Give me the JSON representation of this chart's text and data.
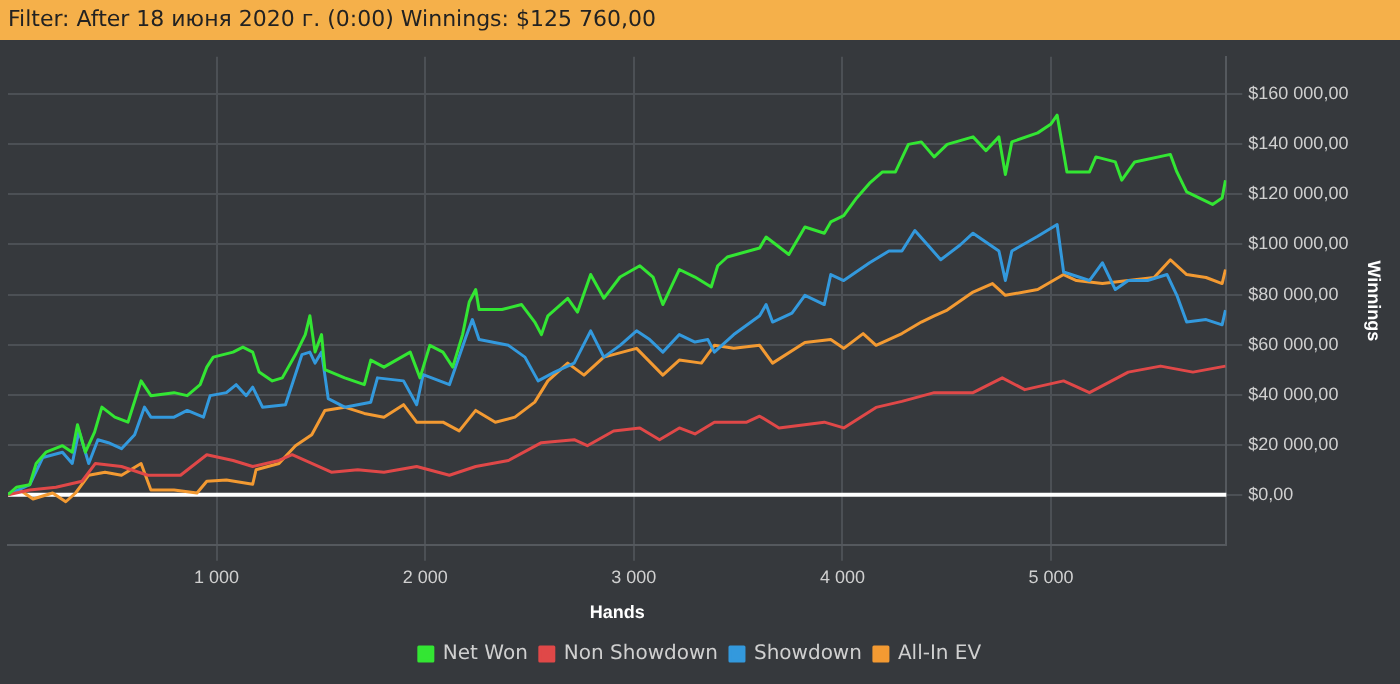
{
  "chart_data": {
    "type": "line",
    "title": "Filter: After 18 июня 2020 г. (0:00) Winnings: $125 760,00",
    "xlabel": "Hands",
    "ylabel": "Winnings",
    "xlim": [
      0,
      5840
    ],
    "ylim": [
      -20000,
      175000
    ],
    "xticks": [
      {
        "value": 1000,
        "label": "1 000"
      },
      {
        "value": 2000,
        "label": "2 000"
      },
      {
        "value": 3000,
        "label": "3 000"
      },
      {
        "value": 4000,
        "label": "4 000"
      },
      {
        "value": 5000,
        "label": "5 000"
      }
    ],
    "yticks": [
      {
        "value": 0,
        "label": "$0,00"
      },
      {
        "value": 20000,
        "label": "$20 000,00"
      },
      {
        "value": 40000,
        "label": "$40 000,00"
      },
      {
        "value": 60000,
        "label": "$60 000,00"
      },
      {
        "value": 80000,
        "label": "$80 000,00"
      },
      {
        "value": 100000,
        "label": "$100 000,00"
      },
      {
        "value": 120000,
        "label": "$120 000,00"
      },
      {
        "value": 140000,
        "label": "$140 000,00"
      },
      {
        "value": 160000,
        "label": "$160 000,00"
      }
    ],
    "grid": true,
    "legend": "bottom",
    "marker": "none",
    "line_style": "solid",
    "ref_lines": [
      {
        "axis": "y",
        "value": 0,
        "color": "#ffffff"
      }
    ],
    "series": [
      {
        "name": "Net Won",
        "color": "#33e633",
        "x": [
          0,
          40,
          104,
          135,
          182,
          261,
          308,
          333,
          371,
          415,
          450,
          512,
          575,
          638,
          685,
          796,
          859,
          921,
          953,
          984,
          1079,
          1126,
          1173,
          1204,
          1267,
          1315,
          1378,
          1425,
          1447,
          1472,
          1503,
          1519,
          1614,
          1708,
          1739,
          1802,
          1928,
          1975,
          2022,
          2085,
          2132,
          2179,
          2211,
          2242,
          2258,
          2368,
          2462,
          2525,
          2557,
          2588,
          2683,
          2730,
          2793,
          2856,
          2934,
          3029,
          3092,
          3139,
          3218,
          3293,
          3371,
          3402,
          3448,
          3603,
          3634,
          3743,
          3820,
          3913,
          3944,
          4006,
          4068,
          4130,
          4192,
          4254,
          4316,
          4378,
          4440,
          4502,
          4626,
          4688,
          4750,
          4781,
          4812,
          4936,
          4998,
          5029,
          5076,
          5184,
          5215,
          5308,
          5339,
          5401,
          5572,
          5603,
          5650,
          5774,
          5820,
          5836
        ],
        "values": [
          0,
          3000,
          4000,
          12500,
          17000,
          19600,
          17000,
          28000,
          17000,
          25000,
          35000,
          31000,
          29000,
          45500,
          39600,
          40800,
          39600,
          44000,
          51000,
          55000,
          57000,
          59000,
          57000,
          49000,
          45500,
          46700,
          56000,
          64000,
          71500,
          57000,
          64000,
          50000,
          46700,
          44000,
          53800,
          51000,
          57000,
          46700,
          59700,
          57000,
          51000,
          64000,
          77000,
          82000,
          74000,
          74000,
          76000,
          69000,
          64000,
          71500,
          78500,
          73000,
          88000,
          78500,
          87000,
          91500,
          87000,
          76000,
          90000,
          87000,
          83000,
          91500,
          95000,
          98600,
          103000,
          96000,
          107000,
          104500,
          109000,
          111500,
          118600,
          124500,
          129000,
          129000,
          140000,
          141000,
          135000,
          140000,
          143000,
          137500,
          143000,
          128000,
          141000,
          144600,
          148000,
          151700,
          129000,
          129000,
          135000,
          133000,
          125700,
          133000,
          136000,
          129000,
          121000,
          116000,
          118600,
          125700
        ]
      },
      {
        "name": "Non Showdown",
        "color": "#e04848",
        "x": [
          0,
          104,
          230,
          355,
          419,
          544,
          670,
          827,
          953,
          1079,
          1173,
          1299,
          1362,
          1456,
          1550,
          1676,
          1802,
          1959,
          2116,
          2242,
          2399,
          2557,
          2714,
          2777,
          2903,
          3029,
          3123,
          3218,
          3293,
          3386,
          3541,
          3603,
          3696,
          3913,
          4006,
          4161,
          4285,
          4440,
          4626,
          4766,
          4874,
          5060,
          5184,
          5370,
          5525,
          5680,
          5836
        ],
        "values": [
          0,
          1900,
          3000,
          5400,
          12500,
          11300,
          7800,
          7800,
          16000,
          13700,
          11300,
          13700,
          16000,
          12500,
          9000,
          10000,
          9000,
          11300,
          7800,
          11300,
          13700,
          20800,
          22000,
          19600,
          25500,
          26700,
          22000,
          26700,
          24300,
          29000,
          29000,
          31400,
          26700,
          29000,
          26700,
          34900,
          37300,
          40800,
          40800,
          46700,
          42000,
          45500,
          40800,
          49000,
          51400,
          49000,
          51400
        ]
      },
      {
        "name": "Showdown",
        "color": "#3399dd",
        "x": [
          0,
          104,
          167,
          261,
          308,
          340,
          387,
          431,
          481,
          544,
          607,
          654,
          685,
          796,
          859,
          937,
          969,
          1047,
          1094,
          1142,
          1173,
          1220,
          1330,
          1409,
          1447,
          1472,
          1503,
          1535,
          1614,
          1739,
          1771,
          1896,
          1959,
          1990,
          2116,
          2195,
          2226,
          2258,
          2399,
          2478,
          2541,
          2620,
          2714,
          2793,
          2856,
          2934,
          3013,
          3076,
          3139,
          3218,
          3293,
          3355,
          3386,
          3479,
          3603,
          3634,
          3665,
          3758,
          3820,
          3913,
          3944,
          4006,
          4130,
          4223,
          4285,
          4347,
          4409,
          4471,
          4564,
          4626,
          4750,
          4781,
          4812,
          4936,
          5029,
          5060,
          5184,
          5246,
          5308,
          5370,
          5463,
          5556,
          5603,
          5650,
          5743,
          5820,
          5836
        ],
        "values": [
          0,
          4000,
          14900,
          17000,
          12500,
          25500,
          12500,
          22000,
          20800,
          18400,
          24000,
          35000,
          31000,
          31000,
          33700,
          31000,
          39600,
          40800,
          44000,
          39600,
          43000,
          35000,
          36000,
          56000,
          57000,
          52600,
          57000,
          38400,
          35000,
          37000,
          46700,
          45500,
          36000,
          48000,
          44000,
          63000,
          70000,
          62000,
          59700,
          55000,
          45500,
          49000,
          52600,
          65500,
          55000,
          59700,
          65500,
          62000,
          57000,
          64000,
          61000,
          62000,
          57000,
          64000,
          71500,
          76000,
          69000,
          72600,
          79700,
          76000,
          88000,
          85600,
          92700,
          97400,
          97400,
          105600,
          99800,
          93900,
          99800,
          104500,
          97400,
          85600,
          97400,
          103300,
          108000,
          89000,
          85600,
          92700,
          82000,
          85600,
          85600,
          88000,
          79700,
          69000,
          70000,
          67900,
          73800
        ]
      },
      {
        "name": "All-In EV",
        "color": "#f39a32",
        "x": [
          0,
          57,
          120,
          214,
          277,
          324,
          387,
          465,
          544,
          638,
          685,
          796,
          906,
          953,
          1047,
          1173,
          1189,
          1299,
          1378,
          1456,
          1519,
          1614,
          1708,
          1802,
          1896,
          1959,
          2085,
          2163,
          2242,
          2336,
          2430,
          2525,
          2588,
          2683,
          2761,
          2856,
          3013,
          3139,
          3218,
          3324,
          3386,
          3479,
          3603,
          3665,
          3820,
          3944,
          4006,
          4099,
          4161,
          4285,
          4378,
          4440,
          4502,
          4626,
          4719,
          4781,
          4936,
          5060,
          5122,
          5246,
          5370,
          5494,
          5572,
          5650,
          5743,
          5820,
          5836
        ],
        "values": [
          0,
          1900,
          -1700,
          700,
          -2800,
          700,
          7800,
          9000,
          7800,
          12500,
          1900,
          1900,
          700,
          5400,
          5900,
          4200,
          10000,
          12500,
          19600,
          24000,
          33700,
          35000,
          32500,
          31000,
          36000,
          29000,
          29000,
          25500,
          33700,
          29000,
          31000,
          37000,
          45500,
          52600,
          47800,
          55000,
          58500,
          47800,
          53800,
          52600,
          59700,
          58500,
          59700,
          52600,
          60800,
          62000,
          58500,
          64400,
          59700,
          64400,
          69000,
          71500,
          73800,
          81000,
          84400,
          79700,
          82000,
          88000,
          85600,
          84400,
          85600,
          86800,
          93900,
          88000,
          86800,
          84400,
          90000
        ]
      }
    ]
  }
}
